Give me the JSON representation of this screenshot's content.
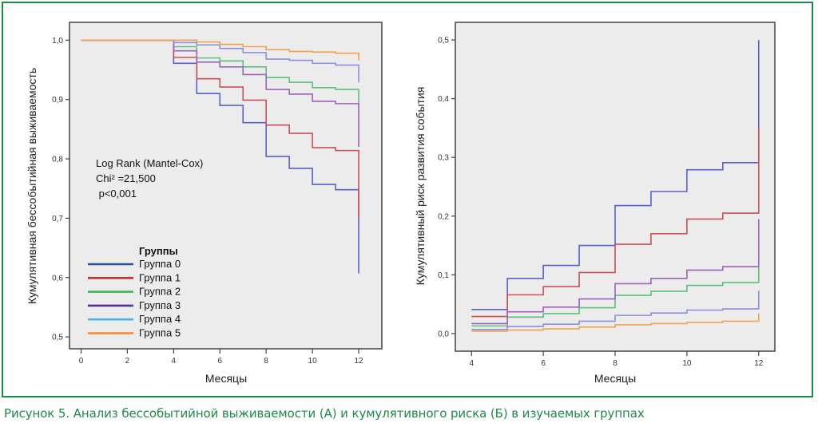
{
  "caption": "Рисунок 5. Анализ бессобытийной выживаемости (А) и кумулятивного риска (Б) в изучаемых группах",
  "colors": {
    "frame": "#1e8a4a",
    "caption": "#1e8a4a",
    "plot_bg": "#ececec"
  },
  "chart_data": [
    {
      "type": "line",
      "step": true,
      "title": "",
      "xlabel": "Месяцы",
      "ylabel": "Кумулятивная бессобытийная выживаемость",
      "xlim": [
        -0.5,
        13
      ],
      "ylim": [
        0.48,
        1.03
      ],
      "xticks": [
        0,
        2,
        4,
        6,
        8,
        10,
        12
      ],
      "xtick_labels": [
        "0",
        "2",
        "4",
        "6",
        "8",
        "10",
        "12"
      ],
      "yticks": [
        0.5,
        0.6,
        0.7,
        0.8,
        0.9,
        1.0
      ],
      "ytick_labels": [
        "0,5",
        "0,6",
        "0,7",
        "0,8",
        "0,9",
        "1,0"
      ],
      "grid": false,
      "annotation": [
        "Log Rank (Mantel-Cox)",
        "Chi² =21,500",
        " p<0,001"
      ],
      "legend": {
        "title": "Группы",
        "placement": "bottom-left"
      },
      "x": [
        0,
        4,
        5,
        6,
        7,
        8,
        9,
        10,
        11,
        12
      ],
      "series": [
        {
          "name": "Группа 0",
          "color": "#5a5fd0",
          "legend_color": "#2b4f96",
          "values": [
            1.0,
            0.961,
            0.91,
            0.89,
            0.861,
            0.804,
            0.784,
            0.757,
            0.748,
            0.607
          ]
        },
        {
          "name": "Группа 1",
          "color": "#cc5058",
          "legend_color": "#d12a30",
          "values": [
            1.0,
            0.971,
            0.935,
            0.921,
            0.899,
            0.857,
            0.843,
            0.819,
            0.814,
            0.7
          ]
        },
        {
          "name": "Группа 2",
          "color": "#5cc07a",
          "legend_color": "#3cb94e",
          "values": [
            1.0,
            0.989,
            0.97,
            0.965,
            0.955,
            0.937,
            0.929,
            0.92,
            0.917,
            0.89
          ]
        },
        {
          "name": "Группа 3",
          "color": "#a060c0",
          "legend_color": "#5b2ea0",
          "values": [
            1.0,
            0.982,
            0.963,
            0.955,
            0.942,
            0.917,
            0.909,
            0.897,
            0.893,
            0.82
          ]
        },
        {
          "name": "Группа 4",
          "color": "#8c8ee0",
          "legend_color": "#4cb2e8",
          "values": [
            1.0,
            0.996,
            0.992,
            0.986,
            0.979,
            0.968,
            0.966,
            0.961,
            0.958,
            0.929
          ]
        },
        {
          "name": "Группа 5",
          "color": "#f4a050",
          "legend_color": "#f58a30",
          "values": [
            1.0,
            1.0,
            0.997,
            0.993,
            0.989,
            0.984,
            0.981,
            0.98,
            0.978,
            0.966
          ]
        }
      ]
    },
    {
      "type": "line",
      "step": true,
      "title": "",
      "xlabel": "Месяцы",
      "ylabel": "Кумулятивный риск развития события",
      "xlim": [
        3.55,
        12.45
      ],
      "ylim": [
        -0.03,
        0.53
      ],
      "xticks": [
        4,
        6,
        8,
        10,
        12
      ],
      "xtick_labels": [
        "4",
        "6",
        "8",
        "10",
        "12"
      ],
      "yticks": [
        0.0,
        0.1,
        0.2,
        0.3,
        0.4,
        0.5
      ],
      "ytick_labels": [
        "0,0",
        "0,1",
        "0,2",
        "0,3",
        "0,4",
        "0,5"
      ],
      "grid": false,
      "x": [
        4,
        5,
        6,
        7,
        8,
        9,
        10,
        11,
        12
      ],
      "series": [
        {
          "name": "Группа 0",
          "color": "#5a5fd0",
          "values": [
            0.041,
            0.094,
            0.116,
            0.15,
            0.218,
            0.242,
            0.279,
            0.291,
            0.5
          ]
        },
        {
          "name": "Группа 1",
          "color": "#cc5058",
          "values": [
            0.029,
            0.066,
            0.08,
            0.104,
            0.152,
            0.17,
            0.195,
            0.205,
            0.35
          ]
        },
        {
          "name": "Группа 2",
          "color": "#5cc07a",
          "values": [
            0.013,
            0.028,
            0.034,
            0.044,
            0.065,
            0.072,
            0.082,
            0.087,
            0.113
          ]
        },
        {
          "name": "Группа 3",
          "color": "#a060c0",
          "values": [
            0.017,
            0.037,
            0.045,
            0.059,
            0.085,
            0.094,
            0.108,
            0.114,
            0.195
          ]
        },
        {
          "name": "Группа 4",
          "color": "#8c8ee0",
          "values": [
            0.007,
            0.012,
            0.016,
            0.021,
            0.031,
            0.035,
            0.04,
            0.042,
            0.073
          ]
        },
        {
          "name": "Группа 5",
          "color": "#f4a050",
          "values": [
            0.004,
            0.006,
            0.008,
            0.011,
            0.015,
            0.017,
            0.019,
            0.021,
            0.034
          ]
        }
      ]
    }
  ]
}
